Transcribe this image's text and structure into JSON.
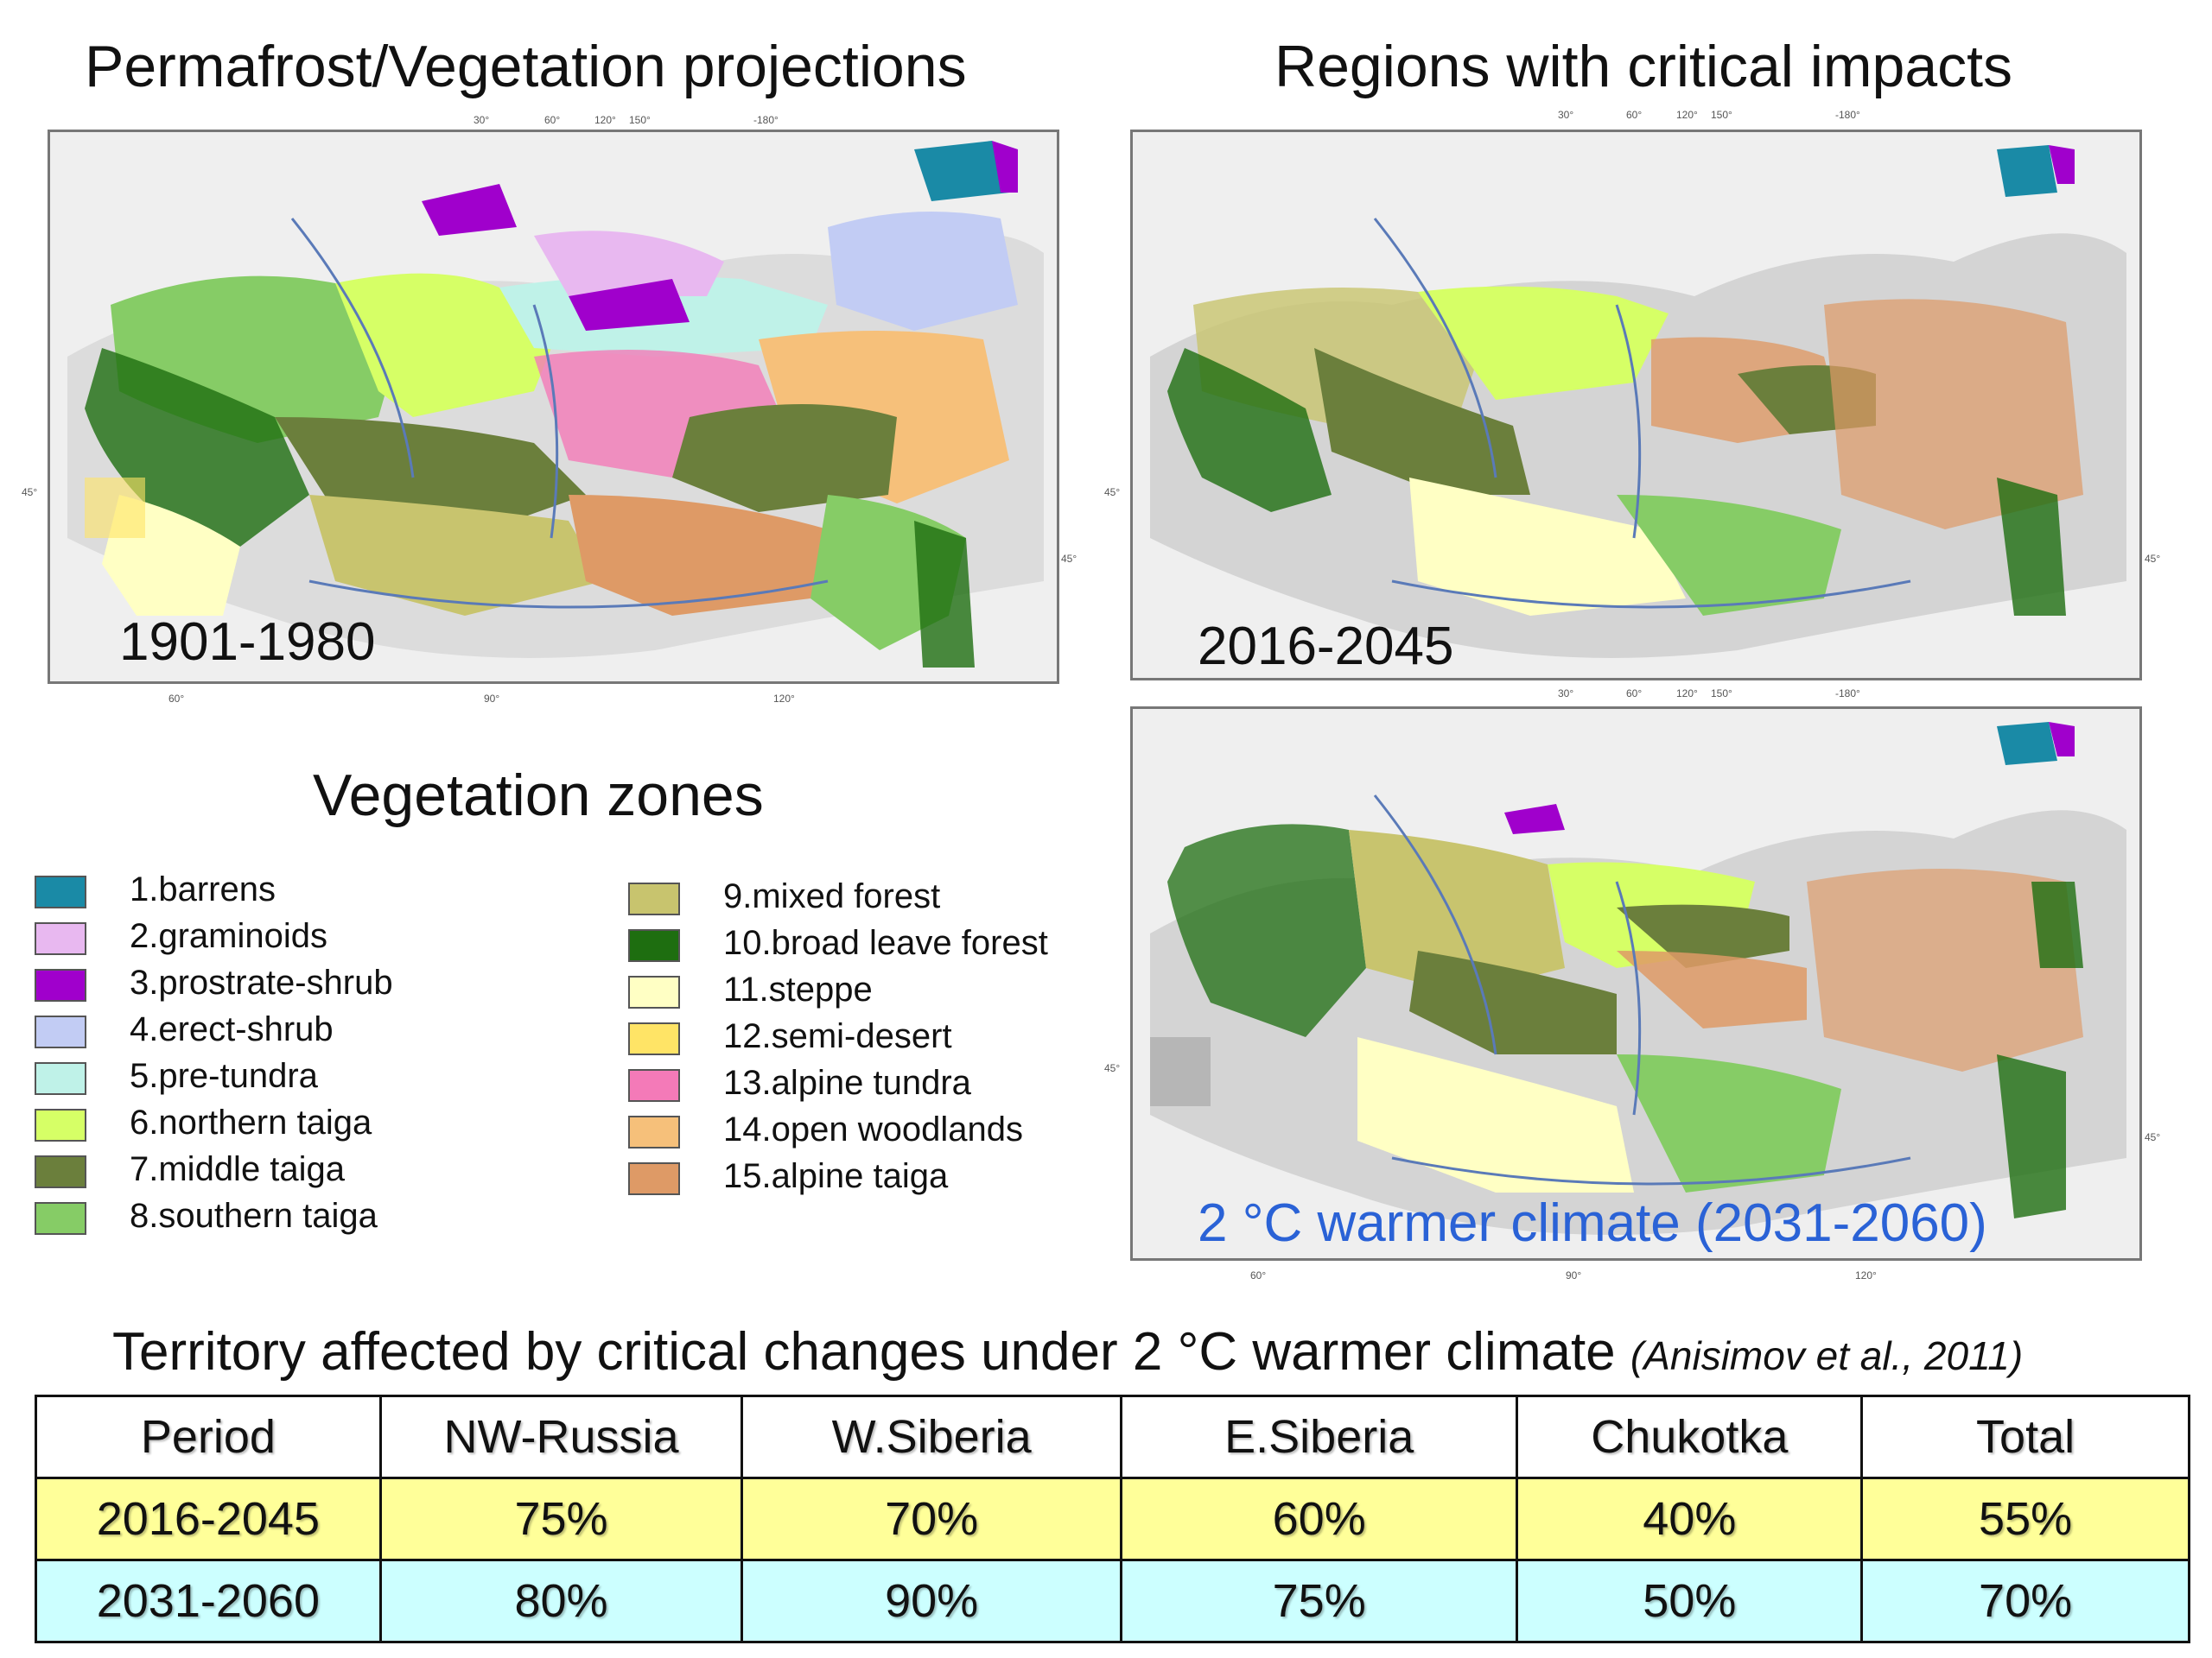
{
  "titles": {
    "left": "Permafrost/Vegetation projections",
    "right": "Regions with critical impacts",
    "legend": "Vegetation zones"
  },
  "maps": {
    "historic": {
      "period": "1901-1980"
    },
    "near": {
      "period": "2016-2045"
    },
    "warm": {
      "period": "2 °C warmer climate (2031-2060)"
    }
  },
  "ticks": {
    "top": [
      "30°",
      "60°",
      "120°",
      "150°",
      "-180°"
    ],
    "bottom": [
      "60°",
      "90°",
      "120°"
    ],
    "lat": "45°"
  },
  "legend": {
    "col1": [
      {
        "label": "1.barrens",
        "color": "#1a8aa6"
      },
      {
        "label": "2.graminoids",
        "color": "#e8b8f0"
      },
      {
        "label": "3.prostrate-shrub",
        "color": "#a000cc"
      },
      {
        "label": "4.erect-shrub",
        "color": "#c2ccf4"
      },
      {
        "label": "5.pre-tundra",
        "color": "#bff2e8"
      },
      {
        "label": "6.northern taiga",
        "color": "#d6ff66"
      },
      {
        "label": "7.middle taiga",
        "color": "#6b7f3c"
      },
      {
        "label": "8.southern taiga",
        "color": "#86cc66"
      }
    ],
    "col2": [
      {
        "label": "9.mixed forest",
        "color": "#c8c46e"
      },
      {
        "label": "10.broad leave forest",
        "color": "#1e6e10"
      },
      {
        "label": "11.steppe",
        "color": "#ffffc4"
      },
      {
        "label": "12.semi-desert",
        "color": "#ffe466"
      },
      {
        "label": "13.alpine tundra",
        "color": "#f47ab8"
      },
      {
        "label": "14.open woodlands",
        "color": "#f6c07a"
      },
      {
        "label": "15.alpine taiga",
        "color": "#de9a66"
      }
    ]
  },
  "table": {
    "title": "Territory affected by critical changes under 2 °C warmer climate",
    "citation": "(Anisimov et al., 2011)",
    "headers": [
      "Period",
      "NW-Russia",
      "W.Siberia",
      "E.Siberia",
      "Chukotka",
      "Total"
    ],
    "rows": [
      [
        "2016-2045",
        "75%",
        "70%",
        "60%",
        "40%",
        "55%"
      ],
      [
        "2031-2060",
        "80%",
        "90%",
        "75%",
        "50%",
        "70%"
      ]
    ]
  }
}
